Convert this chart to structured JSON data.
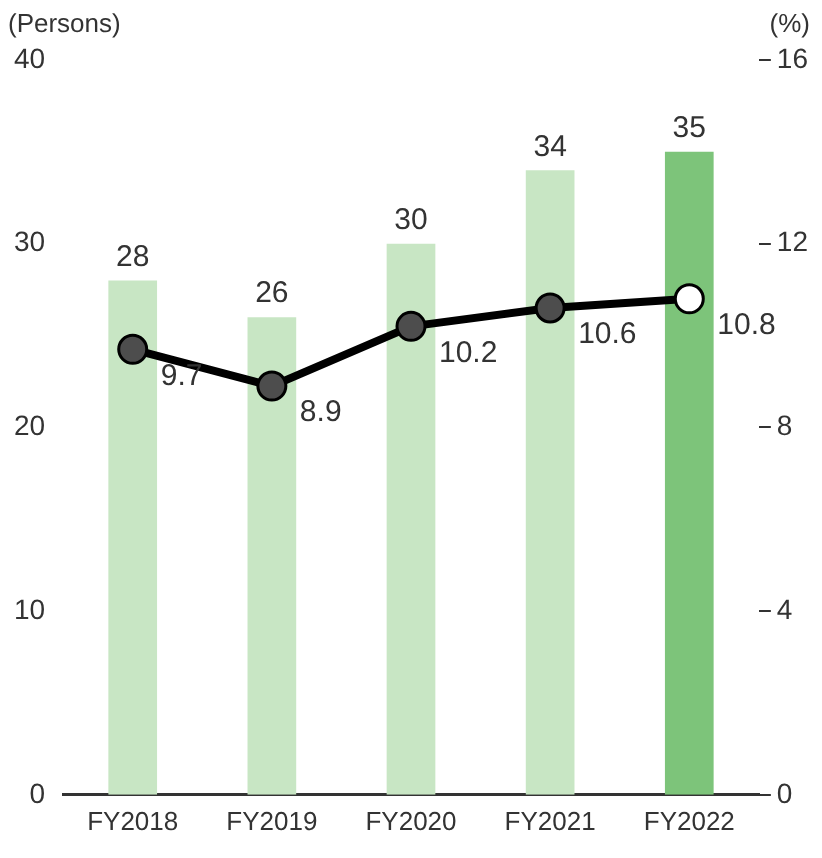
{
  "chart_data": {
    "type": "bar",
    "ylabel": "(Persons)",
    "y2label": "(%)",
    "categories": [
      "FY2018",
      "FY2019",
      "FY2020",
      "FY2021",
      "FY2022"
    ],
    "series": [
      {
        "colors": [
          "#c8e6c4",
          "#c8e6c4",
          "#c8e6c4",
          "#c8e6c4",
          "#7dc47a"
        ],
        "values": [
          28,
          26,
          30,
          34,
          35
        ]
      },
      {
        "type": "line",
        "axis": "y2",
        "color": "#000000",
        "colors": [
          "#4d4d4d",
          "#4d4d4d",
          "#4d4d4d",
          "#4d4d4d",
          "#ffffff"
        ],
        "values": [
          9.7,
          8.9,
          10.2,
          10.6,
          10.8
        ]
      }
    ],
    "ylim": [
      0,
      40
    ],
    "yticks": [
      0,
      10,
      20,
      30,
      40
    ],
    "y2lim": [
      0,
      16
    ],
    "y2ticks": [
      0,
      4,
      8,
      12,
      16
    ],
    "grid": false,
    "legend": false,
    "marker": "circle",
    "line_style": "solid",
    "data_labels": true
  }
}
